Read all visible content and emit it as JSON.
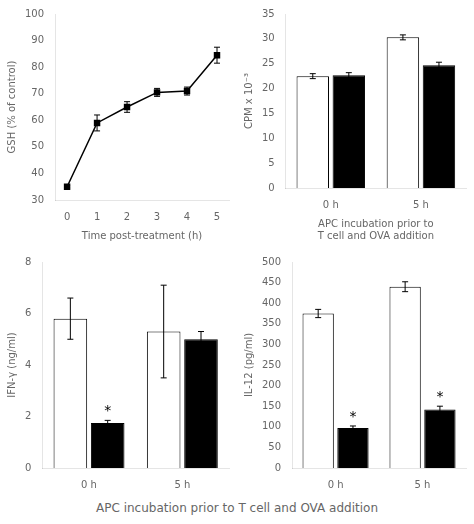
{
  "xlabel": "APC incubation prior to T cell and OVA addition",
  "chart_data": [
    {
      "type": "line",
      "xlabel": "Time post-treatment (h)",
      "ylabel": "GSH (% of control)",
      "x": [
        0,
        1,
        2,
        3,
        4,
        5
      ],
      "series": [
        {
          "color": "#000000",
          "marker": "square",
          "line_style": "solid",
          "values": [
            35,
            59,
            65,
            70.5,
            71,
            84.5
          ],
          "errors": [
            0.5,
            3,
            2,
            1.5,
            1.5,
            3
          ]
        }
      ],
      "xlim": [
        -0.4,
        5.4
      ],
      "xticks": [
        0,
        1,
        2,
        3,
        4,
        5
      ],
      "ylim": [
        30,
        100
      ],
      "yticks": [
        30,
        40,
        50,
        60,
        70,
        80,
        90,
        100
      ],
      "grid": false
    },
    {
      "type": "bar",
      "xlabel": [
        "APC incubation prior to",
        "T cell and OVA addition"
      ],
      "ylabel": "CPM x 10⁻³",
      "categories": [
        "0 h",
        "5 h"
      ],
      "series": [
        {
          "color": "#ffffff",
          "values": [
            22.5,
            30.3
          ],
          "errors": [
            0.5,
            0.5
          ]
        },
        {
          "color": "#000000",
          "values": [
            22.7,
            24.7
          ],
          "errors": [
            0.5,
            0.6
          ]
        }
      ],
      "ylim": [
        0,
        35
      ],
      "yticks": [
        0,
        5,
        10,
        15,
        20,
        25,
        30,
        35
      ],
      "grid": false
    },
    {
      "type": "bar",
      "ylabel": "IFN-γ (ng/ml)",
      "categories": [
        "0 h",
        "5 h"
      ],
      "series": [
        {
          "color": "#ffffff",
          "values": [
            5.8,
            5.3
          ],
          "errors": [
            0.8,
            1.8
          ]
        },
        {
          "color": "#000000",
          "values": [
            1.75,
            5.0
          ],
          "errors": [
            0.1,
            0.3
          ],
          "annotations": [
            "*",
            null
          ]
        }
      ],
      "ylim": [
        0,
        8
      ],
      "yticks": [
        0,
        2,
        4,
        6,
        8
      ],
      "grid": false
    },
    {
      "type": "bar",
      "ylabel": "IL-12 (pg/ml)",
      "categories": [
        "0 h",
        "5 h"
      ],
      "series": [
        {
          "color": "#ffffff",
          "values": [
            375,
            440
          ],
          "errors": [
            10,
            12
          ]
        },
        {
          "color": "#000000",
          "values": [
            97,
            142
          ],
          "errors": [
            5,
            8
          ],
          "annotations": [
            "*",
            "*"
          ]
        }
      ],
      "ylim": [
        0,
        500
      ],
      "yticks": [
        0,
        50,
        100,
        150,
        200,
        250,
        300,
        350,
        400,
        450,
        500
      ],
      "grid": false
    }
  ]
}
